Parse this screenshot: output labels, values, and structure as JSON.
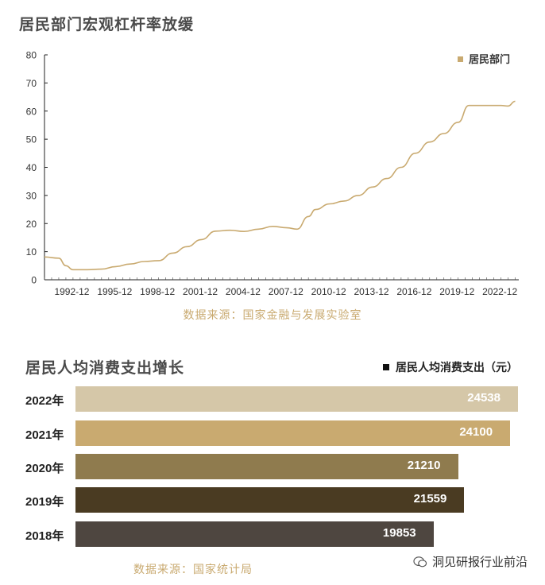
{
  "chart_data": [
    {
      "type": "line",
      "title": "居民部门宏观杠杆率放缓",
      "legend": "居民部门",
      "source": "数据来源：国家金融与发展实验室",
      "color": "#c9aa70",
      "ylim": [
        0,
        80
      ],
      "yticks": [
        "0",
        "10",
        "20",
        "30",
        "40",
        "50",
        "60",
        "70",
        "80"
      ],
      "xticks": [
        "1992-12",
        "1995-12",
        "1998-12",
        "2001-12",
        "2004-12",
        "2007-12",
        "2010-12",
        "2013-12",
        "2016-12",
        "2019-12",
        "2022-12"
      ],
      "x_start": 1991.0,
      "x_end": 2024.25,
      "points": [
        [
          1991.0,
          8.1
        ],
        [
          1992.0,
          7.7
        ],
        [
          1992.5,
          5.0
        ],
        [
          1993.0,
          3.6
        ],
        [
          1994.0,
          3.6
        ],
        [
          1995.0,
          3.8
        ],
        [
          1996.0,
          4.7
        ],
        [
          1997.0,
          5.6
        ],
        [
          1998.0,
          6.5
        ],
        [
          1999.0,
          6.8
        ],
        [
          2000.0,
          9.5
        ],
        [
          2001.0,
          11.8
        ],
        [
          2002.0,
          14.3
        ],
        [
          2003.0,
          17.3
        ],
        [
          2004.0,
          17.6
        ],
        [
          2005.0,
          17.2
        ],
        [
          2006.0,
          18.0
        ],
        [
          2007.0,
          19.0
        ],
        [
          2008.0,
          18.5
        ],
        [
          2008.7,
          18.0
        ],
        [
          2009.5,
          22.5
        ],
        [
          2010.0,
          25.0
        ],
        [
          2011.0,
          27.0
        ],
        [
          2012.0,
          28.0
        ],
        [
          2013.0,
          30.0
        ],
        [
          2014.0,
          33.0
        ],
        [
          2015.0,
          36.0
        ],
        [
          2016.0,
          40.0
        ],
        [
          2017.0,
          45.0
        ],
        [
          2018.0,
          49.0
        ],
        [
          2019.0,
          52.0
        ],
        [
          2020.0,
          56.0
        ],
        [
          2020.75,
          62.0
        ],
        [
          2021.5,
          62.0
        ],
        [
          2022.5,
          62.0
        ],
        [
          2023.0,
          62.0
        ],
        [
          2023.5,
          61.8
        ],
        [
          2024.0,
          63.5
        ]
      ]
    },
    {
      "type": "bar",
      "title": "居民人均消费支出增长",
      "legend": "居民人均消费支出（元）",
      "source": "数据来源：国家统计局",
      "categories": [
        "2022年",
        "2021年",
        "2020年",
        "2019年",
        "2018年"
      ],
      "values": [
        24538,
        24100,
        21210,
        21559,
        19853
      ],
      "value_labels": [
        "24538",
        "24100",
        "21210",
        "21559",
        "19853"
      ],
      "colors": [
        "#d5c7a8",
        "#c9aa70",
        "#8f7b4e",
        "#4a3b22",
        "#4e4640"
      ]
    }
  ],
  "watermark": "洞见研报行业前沿"
}
